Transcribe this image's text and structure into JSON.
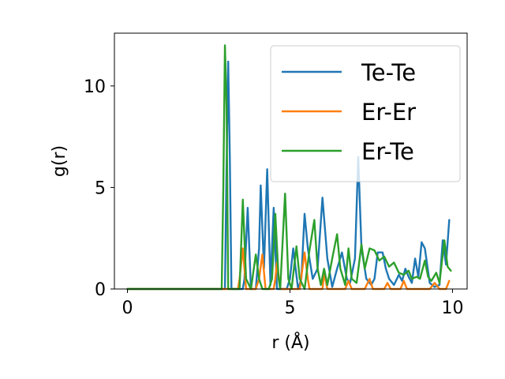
{
  "chart_data": {
    "type": "line",
    "xlabel": "r (Å)",
    "ylabel": "g(r)",
    "xlim": [
      -0.4,
      10.45
    ],
    "ylim": [
      0,
      12.6
    ],
    "xticks": [
      0,
      5,
      10
    ],
    "yticks": [
      0,
      5,
      10
    ],
    "grid": false,
    "legend_position": "upper right",
    "series": [
      {
        "name": "Te-Te",
        "color": "#1f77b4",
        "points": [
          [
            0.0,
            0
          ],
          [
            2.95,
            0
          ],
          [
            3.0,
            0
          ],
          [
            3.05,
            6.0
          ],
          [
            3.1,
            11.2
          ],
          [
            3.15,
            6.5
          ],
          [
            3.2,
            0
          ],
          [
            3.55,
            0
          ],
          [
            3.6,
            0.5
          ],
          [
            3.7,
            4.0
          ],
          [
            3.8,
            0
          ],
          [
            3.95,
            0
          ],
          [
            4.05,
            2.0
          ],
          [
            4.1,
            5.1
          ],
          [
            4.2,
            1.0
          ],
          [
            4.3,
            5.9
          ],
          [
            4.4,
            0.2
          ],
          [
            4.5,
            4.0
          ],
          [
            4.6,
            0
          ],
          [
            4.9,
            0
          ],
          [
            5.0,
            0.5
          ],
          [
            5.1,
            2.0
          ],
          [
            5.25,
            0
          ],
          [
            5.35,
            0.5
          ],
          [
            5.45,
            3.7
          ],
          [
            5.55,
            2.0
          ],
          [
            5.7,
            0.5
          ],
          [
            5.85,
            1.0
          ],
          [
            6.0,
            4.5
          ],
          [
            6.15,
            1.5
          ],
          [
            6.3,
            0.1
          ],
          [
            6.45,
            1.0
          ],
          [
            6.6,
            1.8
          ],
          [
            6.75,
            0.5
          ],
          [
            6.85,
            0.3
          ],
          [
            7.0,
            1.5
          ],
          [
            7.1,
            6.5
          ],
          [
            7.2,
            2.0
          ],
          [
            7.35,
            0.5
          ],
          [
            7.5,
            0.2
          ],
          [
            7.6,
            0.5
          ],
          [
            7.7,
            1.8
          ],
          [
            7.85,
            1.8
          ],
          [
            7.95,
            1.0
          ],
          [
            8.05,
            0.5
          ],
          [
            8.2,
            0.2
          ],
          [
            8.35,
            0.7
          ],
          [
            8.45,
            0.4
          ],
          [
            8.55,
            1.0
          ],
          [
            8.65,
            0.6
          ],
          [
            8.75,
            0.3
          ],
          [
            8.85,
            1.5
          ],
          [
            8.95,
            0.6
          ],
          [
            9.05,
            2.3
          ],
          [
            9.15,
            2.0
          ],
          [
            9.3,
            0.3
          ],
          [
            9.45,
            0.1
          ],
          [
            9.6,
            0.2
          ],
          [
            9.7,
            2.4
          ],
          [
            9.8,
            1.2
          ],
          [
            9.9,
            3.4
          ]
        ]
      },
      {
        "name": "Er-Er",
        "color": "#ff7f0e",
        "points": [
          [
            0.0,
            0
          ],
          [
            3.4,
            0
          ],
          [
            3.45,
            0.5
          ],
          [
            3.55,
            2.0
          ],
          [
            3.65,
            0
          ],
          [
            3.95,
            0
          ],
          [
            4.05,
            0.5
          ],
          [
            4.15,
            1.7
          ],
          [
            4.25,
            0
          ],
          [
            4.5,
            0
          ],
          [
            4.55,
            0.5
          ],
          [
            4.6,
            1.3
          ],
          [
            4.7,
            0
          ],
          [
            5.3,
            0
          ],
          [
            5.4,
            1.2
          ],
          [
            5.45,
            1.8
          ],
          [
            5.55,
            0.5
          ],
          [
            5.6,
            0
          ],
          [
            6.0,
            0
          ],
          [
            6.05,
            0.8
          ],
          [
            6.15,
            0
          ],
          [
            6.7,
            0
          ],
          [
            6.8,
            0.4
          ],
          [
            6.9,
            0
          ],
          [
            7.3,
            0
          ],
          [
            7.45,
            0.5
          ],
          [
            7.55,
            0
          ],
          [
            7.9,
            0
          ],
          [
            8.0,
            0.3
          ],
          [
            8.1,
            0
          ],
          [
            8.4,
            0
          ],
          [
            8.5,
            0.4
          ],
          [
            8.6,
            0
          ],
          [
            9.3,
            0
          ],
          [
            9.45,
            0.3
          ],
          [
            9.6,
            0
          ],
          [
            9.8,
            0
          ],
          [
            9.9,
            0.4
          ]
        ]
      },
      {
        "name": "Er-Te",
        "color": "#2ca02c",
        "points": [
          [
            0.0,
            0
          ],
          [
            2.9,
            0
          ],
          [
            2.95,
            5.0
          ],
          [
            3.0,
            12.0
          ],
          [
            3.05,
            9.0
          ],
          [
            3.1,
            0
          ],
          [
            3.45,
            0
          ],
          [
            3.55,
            4.4
          ],
          [
            3.65,
            0.5
          ],
          [
            3.8,
            0
          ],
          [
            3.95,
            1.7
          ],
          [
            4.05,
            0.5
          ],
          [
            4.15,
            0
          ],
          [
            4.35,
            0
          ],
          [
            4.45,
            0.5
          ],
          [
            4.55,
            3.7
          ],
          [
            4.65,
            0.5
          ],
          [
            4.7,
            0
          ],
          [
            4.85,
            4.7
          ],
          [
            4.95,
            0.5
          ],
          [
            5.05,
            0
          ],
          [
            5.2,
            2.1
          ],
          [
            5.3,
            0.5
          ],
          [
            5.45,
            0
          ],
          [
            5.6,
            1.9
          ],
          [
            5.75,
            3.4
          ],
          [
            5.85,
            1.0
          ],
          [
            5.95,
            0.2
          ],
          [
            6.05,
            1.0
          ],
          [
            6.15,
            0.2
          ],
          [
            6.3,
            1.5
          ],
          [
            6.45,
            2.7
          ],
          [
            6.55,
            1.0
          ],
          [
            6.7,
            0.2
          ],
          [
            6.8,
            2.0
          ],
          [
            6.9,
            0.5
          ],
          [
            7.05,
            0.3
          ],
          [
            7.2,
            2.2
          ],
          [
            7.3,
            1.0
          ],
          [
            7.45,
            2.0
          ],
          [
            7.6,
            1.9
          ],
          [
            7.75,
            1.4
          ],
          [
            7.9,
            1.6
          ],
          [
            8.05,
            1.1
          ],
          [
            8.2,
            1.3
          ],
          [
            8.35,
            0.8
          ],
          [
            8.5,
            0.7
          ],
          [
            8.65,
            0.9
          ],
          [
            8.75,
            0.5
          ],
          [
            8.9,
            0.6
          ],
          [
            9.0,
            0.5
          ],
          [
            9.15,
            1.4
          ],
          [
            9.25,
            0.6
          ],
          [
            9.35,
            0.4
          ],
          [
            9.5,
            0.8
          ],
          [
            9.6,
            0.3
          ],
          [
            9.75,
            2.4
          ],
          [
            9.85,
            1.1
          ],
          [
            9.95,
            0.9
          ]
        ]
      }
    ]
  }
}
